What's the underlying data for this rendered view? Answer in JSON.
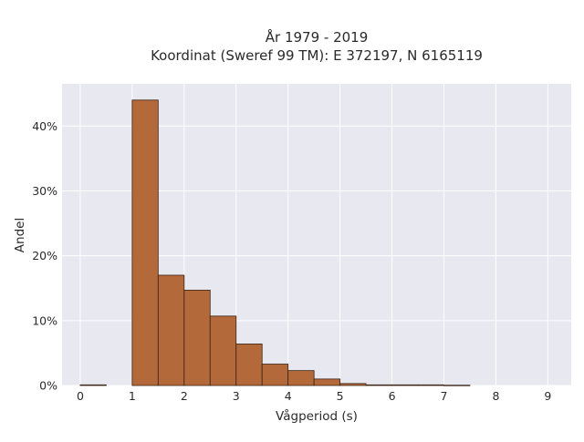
{
  "chart_data": {
    "type": "bar",
    "title_lines": [
      "År 1979 - 2019",
      "Koordinat (Sweref 99 TM): E 372197, N 6165119"
    ],
    "xlabel": "Vågperiod (s)",
    "ylabel": "Andel",
    "xlim": [
      -0.35,
      9.45
    ],
    "ylim": [
      0,
      0.465
    ],
    "xticks": [
      0,
      1,
      2,
      3,
      4,
      5,
      6,
      7,
      8,
      9
    ],
    "yticks": [
      0,
      0.1,
      0.2,
      0.3,
      0.4
    ],
    "ytick_labels": [
      "0%",
      "10%",
      "20%",
      "30%",
      "40%"
    ],
    "bin_width": 0.5,
    "bins": [
      {
        "x0": 0.0,
        "value": 0.001
      },
      {
        "x0": 1.0,
        "value": 0.44
      },
      {
        "x0": 1.5,
        "value": 0.17
      },
      {
        "x0": 2.0,
        "value": 0.147
      },
      {
        "x0": 2.5,
        "value": 0.107
      },
      {
        "x0": 3.0,
        "value": 0.064
      },
      {
        "x0": 3.5,
        "value": 0.033
      },
      {
        "x0": 4.0,
        "value": 0.023
      },
      {
        "x0": 4.5,
        "value": 0.01
      },
      {
        "x0": 5.0,
        "value": 0.003
      },
      {
        "x0": 5.5,
        "value": 0.001
      },
      {
        "x0": 6.0,
        "value": 0.001
      },
      {
        "x0": 6.5,
        "value": 0.001
      },
      {
        "x0": 7.0,
        "value": 0.0005
      }
    ],
    "grid": true,
    "colors": {
      "bar_fill": "#b4693a",
      "bar_stroke": "#3a2414",
      "plot_background": "#e8e8f0",
      "grid": "#ffffff"
    }
  }
}
